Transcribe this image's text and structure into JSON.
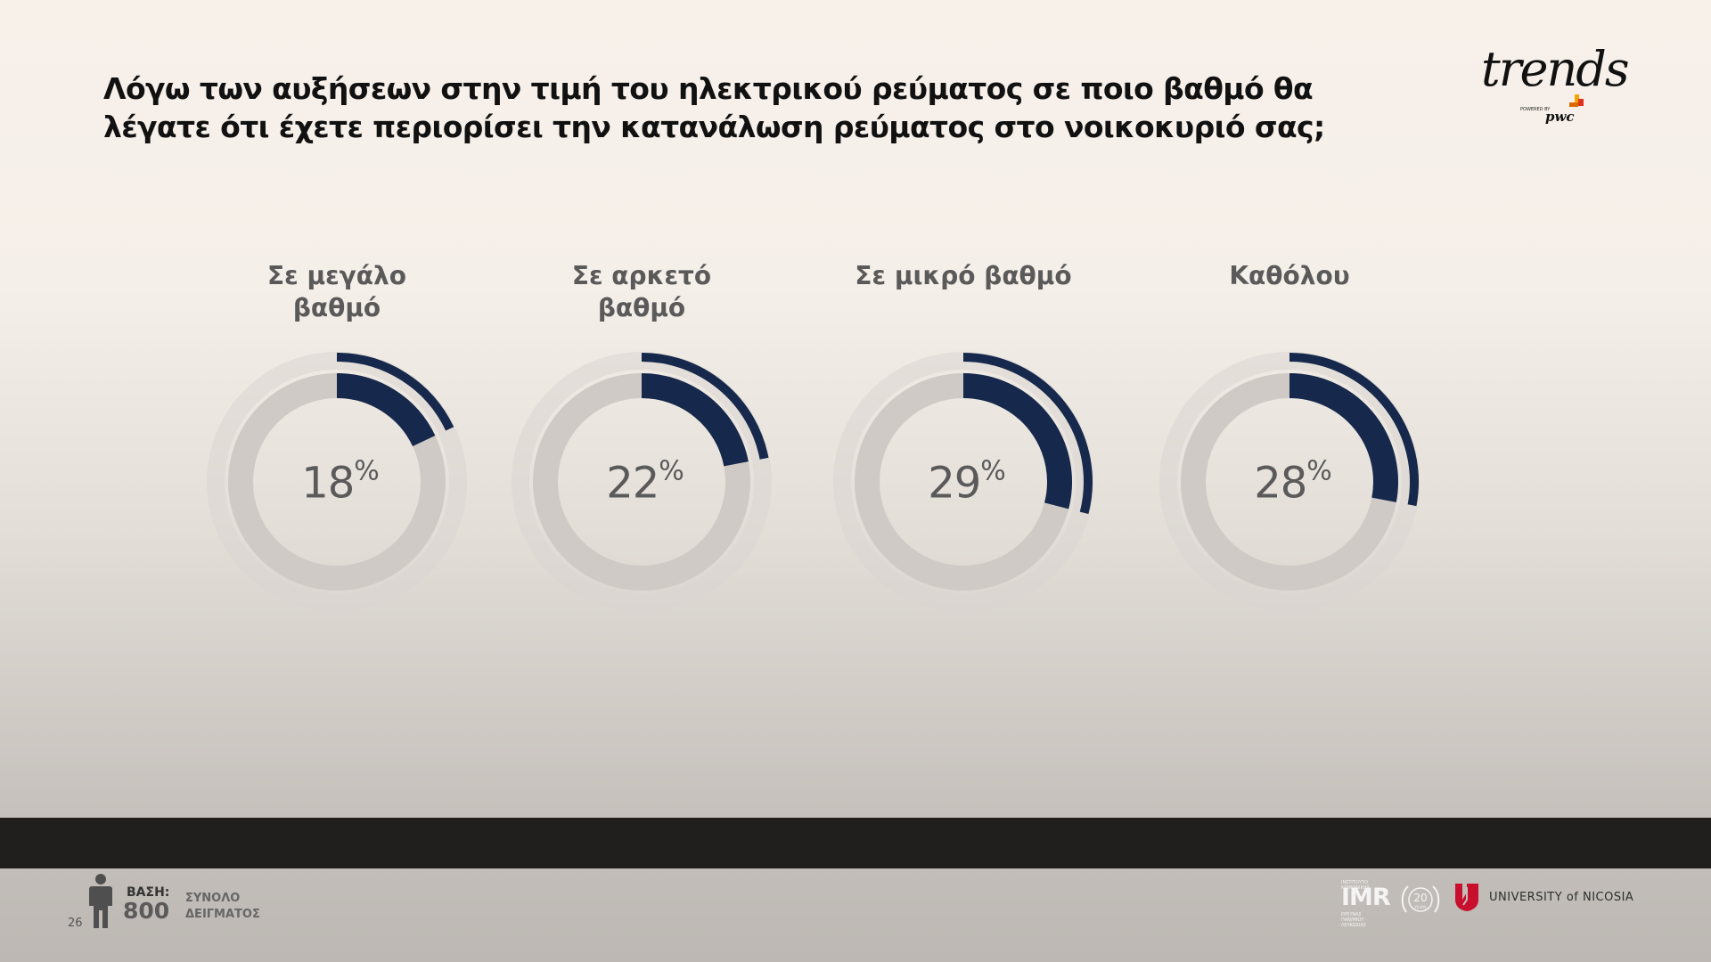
{
  "slide": {
    "title": "Λόγω των αυξήσεων στην τιμή του ηλεκτρικού ρεύματος σε ποιο βαθμό θα λέγατε ότι έχετε περιορίσει την κατανάλωση ρεύματος στο νοικοκυριό σας;",
    "page_number": "26"
  },
  "brand": {
    "logo_text": "trends",
    "powered_by": "POWERED BY",
    "partner": "pwc",
    "accent_colors": [
      "#f7a600",
      "#e0301e",
      "#dc6900"
    ]
  },
  "base": {
    "label": "ΒΑΣΗ:",
    "value": "800",
    "description": "ΣΥΝΟΛΟ ΔΕΙΓΜΑΤΟΣ",
    "icon": "person-icon"
  },
  "footer_logos": {
    "imr": {
      "name": "IMR",
      "tagline_top": "ΙΝΣΤΙΤΟΥΤΟ ΚΟΙΝΩΝΙΚΗΣ",
      "tagline_bottom": "ΕΡΕΥΝΑΣ ΠΑΝ/ΜΙΟΥ ΛΕΥΚΩΣΙΑΣ",
      "anniversary": "20",
      "anniversary_sub": "YEARS"
    },
    "university": "UNIVERSITY of NICOSIA"
  },
  "colors": {
    "arc": "#16284b",
    "track": "#cfcac5",
    "halo": "#dbd6d1",
    "label_text": "#5a5a5a",
    "band": "#201f1e"
  },
  "chart_data": {
    "type": "donut",
    "unit": "%",
    "categories": [
      "Σε μεγάλο βαθμό",
      "Σε αρκετό βαθμό",
      "Σε μικρό βαθμό",
      "Καθόλου"
    ],
    "values": [
      18,
      22,
      29,
      28
    ],
    "labels": [
      "Σε μεγάλο\nβαθμό",
      "Σε αρκετό\nβαθμό",
      "Σε μικρό βαθμό",
      "Καθόλου"
    ]
  }
}
